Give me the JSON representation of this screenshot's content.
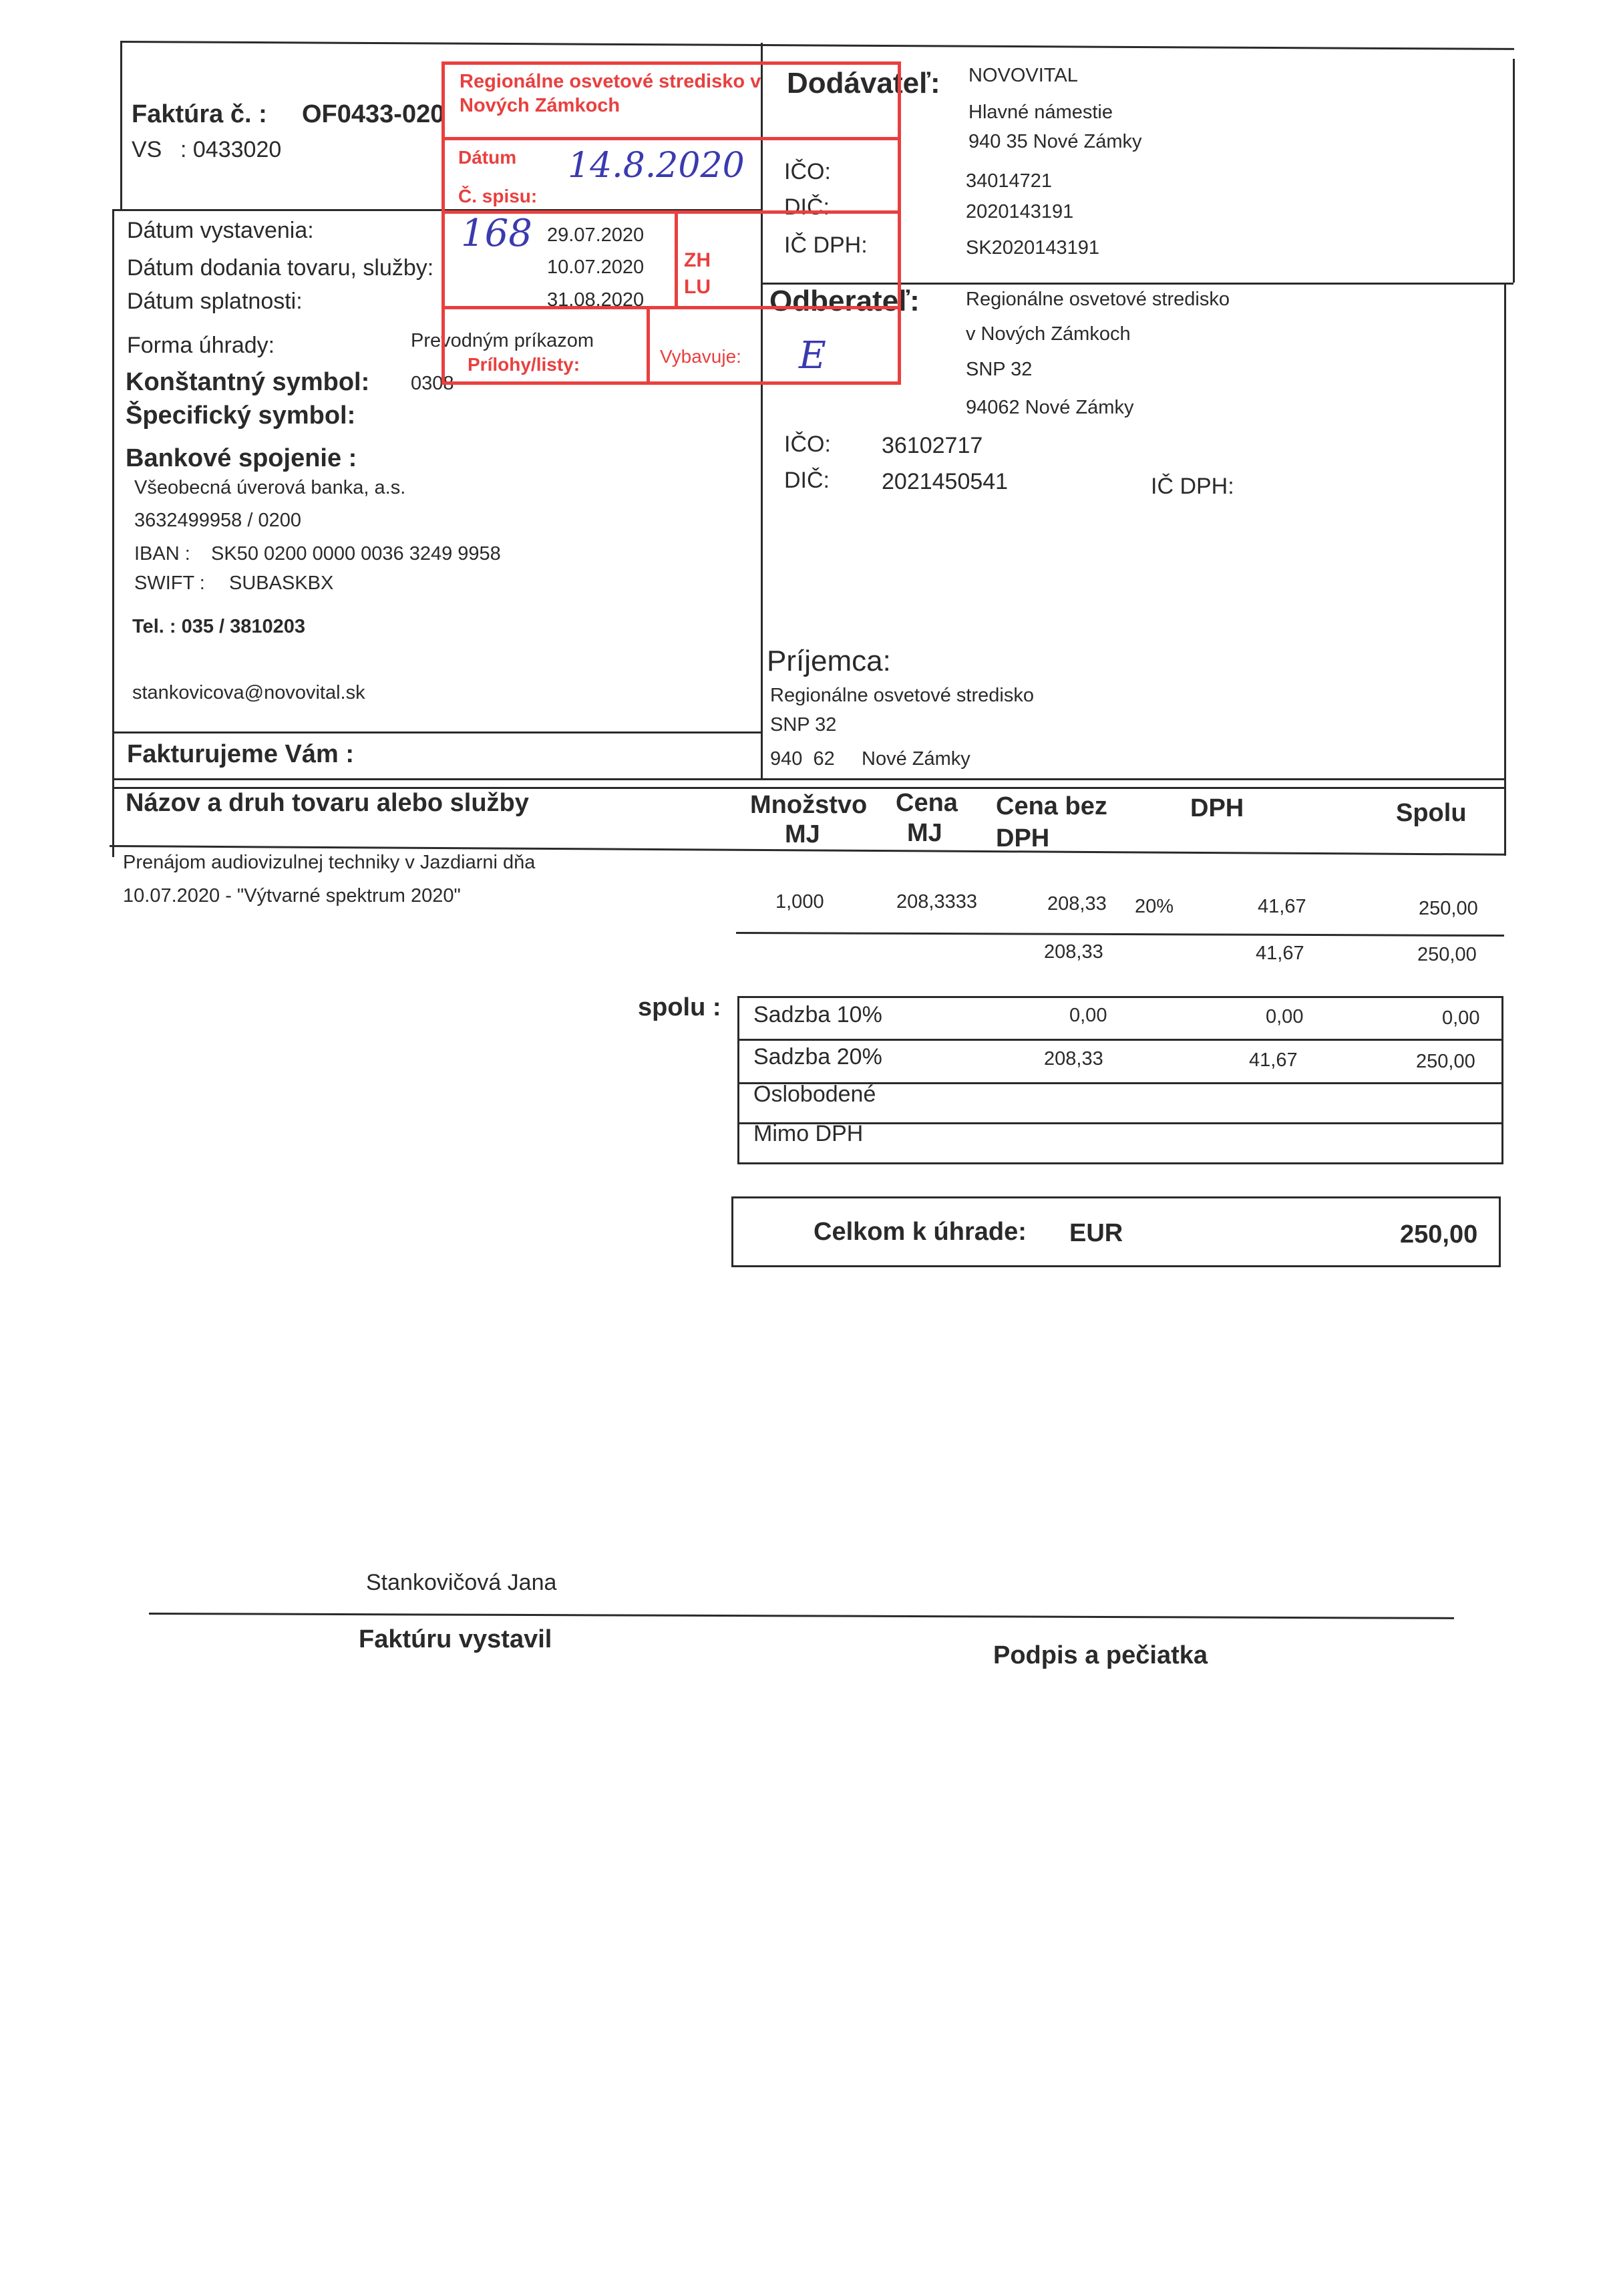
{
  "invoice": {
    "number_label": "Faktúra č. :",
    "number": "OF0433-020",
    "vs_label": "VS",
    "vs": ": 0433020",
    "issue_date_label": "Dátum vystavenia:",
    "issue_date": "29.07.2020",
    "delivery_date_label": "Dátum dodania tovaru, služby:",
    "delivery_date": "10.07.2020",
    "due_date_label": "Dátum splatnosti:",
    "due_date": "31.08.2020",
    "payment_form_label": "Forma úhrady:",
    "payment_form": "Prevodným príkazom",
    "constant_symbol_label": "Konštantný symbol:",
    "constant_symbol": "0308",
    "specific_symbol_label": "Špecifický symbol:",
    "bank_label": "Bankové spojenie :",
    "bank_name": "Všeobecná úverová banka, a.s.",
    "account": "3632499958 /  0200",
    "iban_label": "IBAN :",
    "iban": "SK50 0200 0000 0036 3249 9958",
    "swift_label": "SWIFT :",
    "swift": "SUBASKBX",
    "tel": "Tel. : 035 / 3810203",
    "email": "stankovicova@novovital.sk",
    "billing_label": "Fakturujeme  Vám :"
  },
  "supplier": {
    "label": "Dodávateľ:",
    "name": "NOVOVITAL",
    "street": "Hlavné námestie",
    "city": "940 35  Nové Zámky",
    "ico_label": "IČO:",
    "ico": "34014721",
    "dic_label": "DIČ:",
    "dic": "2020143191",
    "icdph_label": "IČ DPH:",
    "icdph": "SK2020143191"
  },
  "customer": {
    "label": "Odberateľ:",
    "name1": "Regionálne osvetové stredisko",
    "name2": "v Nových Zámkoch",
    "street": "SNP 32",
    "city": "94062  Nové Zámky",
    "ico_label": "IČO:",
    "ico": "36102717",
    "dic_label": "DIČ:",
    "dic": "2021450541",
    "icdph_label": "IČ DPH:"
  },
  "recipient": {
    "label": "Príjemca:",
    "name": "Regionálne osvetové stredisko",
    "street": "SNP 32",
    "city": "940  62     Nové Zámky"
  },
  "table": {
    "headers": {
      "name": "Názov a druh tovaru alebo služby",
      "qty1": "Množstvo",
      "qty2": "MJ",
      "price1": "Cena",
      "price2": "MJ",
      "net1": "Cena bez",
      "net2": "DPH",
      "vat": "DPH",
      "total": "Spolu"
    },
    "rows": [
      {
        "desc1": "Prenájom audiovizulnej techniky v Jazdiarni dňa",
        "desc2": "10.07.2020 - \"Výtvarné spektrum 2020\"",
        "qty": "1,000",
        "unit_price": "208,3333",
        "net": "208,33",
        "rate": "20%",
        "vat": "41,67",
        "total": "250,00"
      }
    ],
    "subtotal": {
      "net": "208,33",
      "vat": "41,67",
      "total": "250,00"
    }
  },
  "summary": {
    "label": "spolu :",
    "rows": [
      {
        "label": "Sadzba 10%",
        "net": "0,00",
        "vat": "0,00",
        "total": "0,00"
      },
      {
        "label": "Sadzba 20%",
        "net": "208,33",
        "vat": "41,67",
        "total": "250,00"
      },
      {
        "label": "Oslobodené"
      },
      {
        "label": "Mimo DPH"
      }
    ]
  },
  "grand_total": {
    "label": "Celkom k úhrade:",
    "currency": "EUR",
    "amount": "250,00"
  },
  "footer": {
    "issuer_name": "Stankovičová Jana",
    "issuer_label": "Faktúru vystavil",
    "signature_label": "Podpis a pečiatka"
  },
  "stamp": {
    "title": "Regionálne osvetové stredisko v Nových Zámkoch",
    "date_label": "Dátum",
    "date_handwritten": "14.8.2020",
    "registry_label": "Č. spisu:",
    "registry_handwritten": "168",
    "zh": "ZH",
    "lu": "LU",
    "attachments_label": "Prílohy/listy:",
    "handler_label": "Vybavuje:",
    "handler_handwritten": "E",
    "color": "#e8403f"
  }
}
